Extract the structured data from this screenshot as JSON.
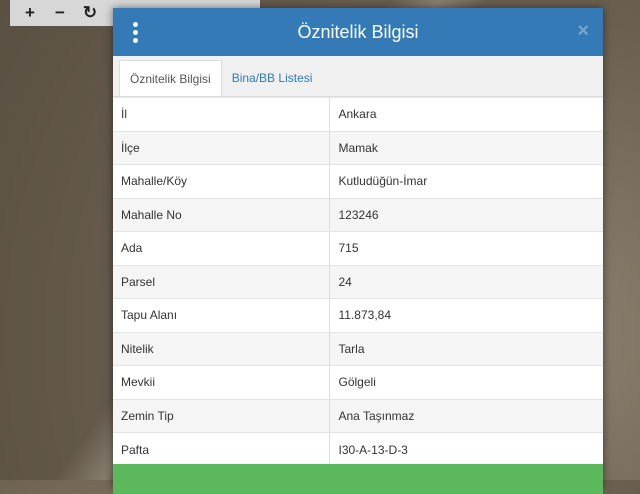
{
  "toolbar": {
    "zoom_in": "+",
    "zoom_out": "−",
    "refresh": "↻"
  },
  "modal": {
    "title": "Öznitelik Bilgisi",
    "close": "×",
    "tabs": [
      {
        "label": "Öznitelik Bilgisi",
        "active": true
      },
      {
        "label": "Bina/BB Listesi",
        "active": false
      }
    ],
    "rows": [
      {
        "label": "İl",
        "value": "Ankara"
      },
      {
        "label": "İlçe",
        "value": "Mamak"
      },
      {
        "label": "Mahalle/Köy",
        "value": "Kutludüğün-İmar"
      },
      {
        "label": "Mahalle No",
        "value": "123246"
      },
      {
        "label": "Ada",
        "value": "715"
      },
      {
        "label": "Parsel",
        "value": "24"
      },
      {
        "label": "Tapu Alanı",
        "value": "11.873,84"
      },
      {
        "label": "Nitelik",
        "value": "Tarla"
      },
      {
        "label": "Mevkii",
        "value": "Gölgeli"
      },
      {
        "label": "Zemin Tip",
        "value": "Ana Taşınmaz"
      },
      {
        "label": "Pafta",
        "value": "I30-A-13-D-3"
      }
    ]
  },
  "colors": {
    "header": "#337ab7",
    "action_bar": "#5cb85c"
  }
}
